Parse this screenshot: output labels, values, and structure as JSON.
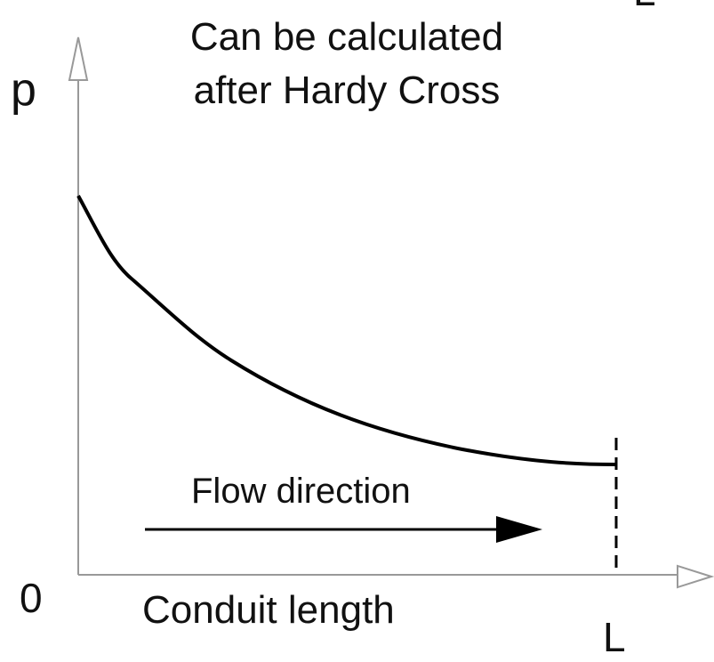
{
  "diagram": {
    "corner_label": "L",
    "note_lines": [
      "Can be calculated",
      "after Hardy Cross"
    ],
    "y_axis_label": "p",
    "origin_label": "0",
    "x_axis_label": "Conduit length",
    "end_label": "L",
    "arrow_label": "Flow direction"
  }
}
